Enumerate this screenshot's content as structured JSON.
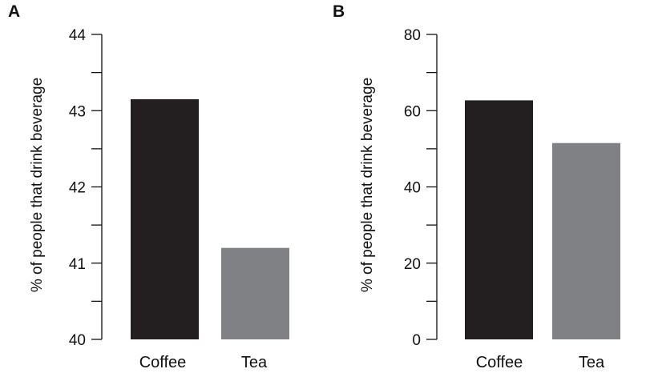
{
  "chart_data": [
    {
      "panel": "A",
      "type": "bar",
      "categories": [
        "Coffee",
        "Tea"
      ],
      "values": [
        43.15,
        41.2
      ],
      "colors": [
        "#231f20",
        "#808184"
      ],
      "title": "",
      "xlabel": "",
      "ylabel": "% of people that drink beverage",
      "ylim": [
        40,
        44
      ],
      "yticks": [
        40,
        41,
        42,
        43,
        44
      ],
      "minor_ticks": [
        40.5,
        41.5,
        42.5,
        43.5
      ],
      "grid": false
    },
    {
      "panel": "B",
      "type": "bar",
      "categories": [
        "Coffee",
        "Tea"
      ],
      "values": [
        62.7,
        51.5
      ],
      "colors": [
        "#231f20",
        "#808184"
      ],
      "title": "",
      "xlabel": "",
      "ylabel": "% of people that drink beverage",
      "ylim": [
        0,
        80
      ],
      "yticks": [
        0,
        20,
        40,
        60,
        80
      ],
      "minor_ticks": [
        10,
        30,
        50,
        70
      ],
      "grid": false
    }
  ]
}
